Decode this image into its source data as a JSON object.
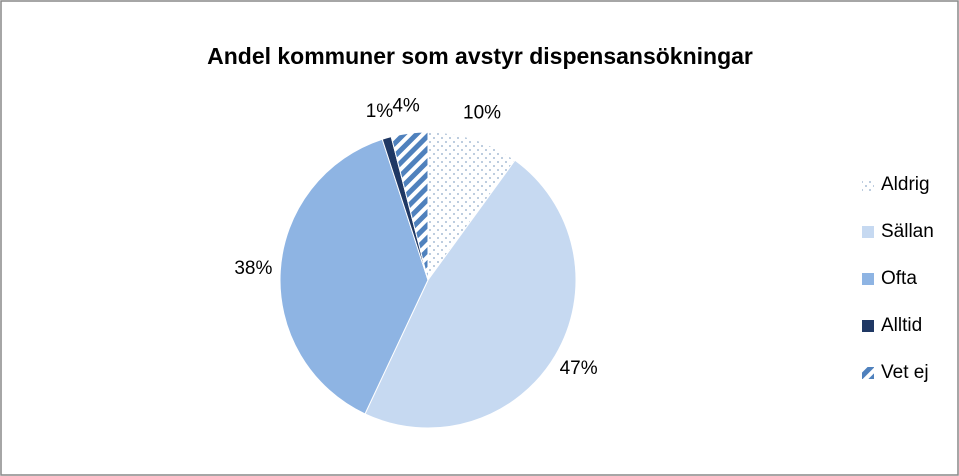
{
  "chart_data": {
    "type": "pie",
    "title": "Andel kommuner som avstyr dispensansökningar",
    "categories": [
      "Aldrig",
      "Sällan",
      "Ofta",
      "Alltid",
      "Vet ej"
    ],
    "values": [
      10,
      47,
      38,
      1,
      4
    ],
    "value_labels": [
      "10%",
      "47%",
      "38%",
      "1%",
      "4%"
    ],
    "colors": [
      "#8eb4e3",
      "#c6d9f1",
      "#8eb4e3",
      "#1f3864",
      "#4f81bd"
    ],
    "patterns": [
      "dots",
      "solid",
      "solid",
      "solid",
      "stripes"
    ],
    "legend": "right"
  }
}
